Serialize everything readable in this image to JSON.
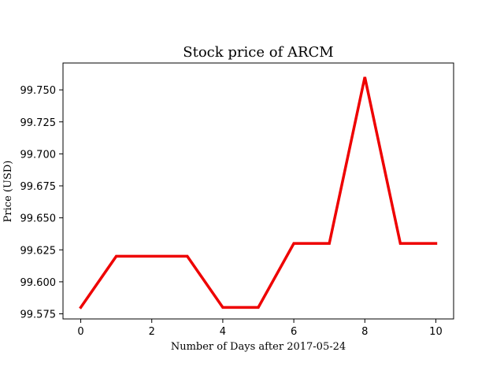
{
  "chart_data": {
    "type": "line",
    "title": "Stock price of ARCM",
    "xlabel": "Number of Days after 2017-05-24",
    "ylabel": "Price (USD)",
    "x": [
      0,
      1,
      2,
      3,
      4,
      5,
      6,
      7,
      8,
      9,
      10
    ],
    "series": [
      {
        "values": [
          99.58,
          99.62,
          99.62,
          99.62,
          99.58,
          99.58,
          99.63,
          99.63,
          99.76,
          99.63,
          99.63
        ],
        "color": "#ee0000"
      }
    ],
    "xlim": [
      -0.5,
      10.5
    ],
    "ylim": [
      99.571,
      99.771
    ],
    "xticks": [
      0,
      2,
      4,
      6,
      8,
      10
    ],
    "xtick_labels": [
      "0",
      "2",
      "4",
      "6",
      "8",
      "10"
    ],
    "yticks": [
      99.575,
      99.6,
      99.625,
      99.65,
      99.675,
      99.7,
      99.725,
      99.75
    ],
    "ytick_labels": [
      "99.575",
      "99.600",
      "99.625",
      "99.650",
      "99.675",
      "99.700",
      "99.725",
      "99.750"
    ],
    "grid": false,
    "legend": false
  }
}
